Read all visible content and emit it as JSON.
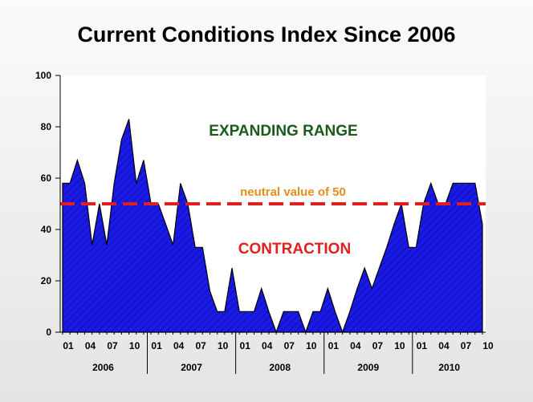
{
  "chart_data": {
    "type": "area",
    "title": "Current Conditions Index Since 2006",
    "xlabel": "",
    "ylabel": "",
    "ylim": [
      0,
      100
    ],
    "y_ticks": [
      0,
      20,
      40,
      60,
      80,
      100
    ],
    "grid": false,
    "months": [
      "2006-01",
      "2006-02",
      "2006-03",
      "2006-04",
      "2006-05",
      "2006-06",
      "2006-07",
      "2006-08",
      "2006-09",
      "2006-10",
      "2006-11",
      "2006-12",
      "2007-01",
      "2007-02",
      "2007-03",
      "2007-04",
      "2007-05",
      "2007-06",
      "2007-07",
      "2007-08",
      "2007-09",
      "2007-10",
      "2007-11",
      "2007-12",
      "2008-01",
      "2008-02",
      "2008-03",
      "2008-04",
      "2008-05",
      "2008-06",
      "2008-07",
      "2008-08",
      "2008-09",
      "2008-10",
      "2008-11",
      "2008-12",
      "2009-01",
      "2009-02",
      "2009-03",
      "2009-04",
      "2009-05",
      "2009-06",
      "2009-07",
      "2009-08",
      "2009-09",
      "2009-10",
      "2009-11",
      "2009-12",
      "2010-01",
      "2010-02",
      "2010-03",
      "2010-04",
      "2010-05",
      "2010-06",
      "2010-07",
      "2010-08",
      "2010-09",
      "2010-10"
    ],
    "series": [
      {
        "values": [
          58,
          58,
          67,
          58,
          34,
          50,
          34,
          58,
          75,
          83,
          58,
          67,
          50,
          50,
          42,
          34,
          58,
          50,
          33,
          33,
          16,
          8,
          8,
          25,
          8,
          8,
          8,
          17,
          8,
          0,
          8,
          8,
          8,
          0,
          8,
          8,
          17,
          8,
          0,
          8,
          17,
          25,
          17,
          25,
          33,
          42,
          50,
          33,
          33,
          50,
          58,
          50,
          50,
          58,
          58,
          58,
          58,
          42
        ],
        "color": "#1010e0"
      }
    ],
    "x_tick_labels": [
      "01",
      "04",
      "07",
      "10",
      "01",
      "04",
      "07",
      "10",
      "01",
      "04",
      "07",
      "10",
      "01",
      "04",
      "07",
      "10",
      "01",
      "04",
      "07",
      "10"
    ],
    "year_labels": [
      "2006",
      "2007",
      "2008",
      "2009",
      "2010"
    ],
    "reference_line": {
      "value": 50,
      "label": "neutral value of 50",
      "color": "#e02020",
      "label_color": "#e0901a"
    },
    "annotations": [
      {
        "text": "EXPANDING RANGE",
        "color": "#1a5a1a"
      },
      {
        "text": "CONTRACTION",
        "color": "#e02020"
      }
    ]
  }
}
